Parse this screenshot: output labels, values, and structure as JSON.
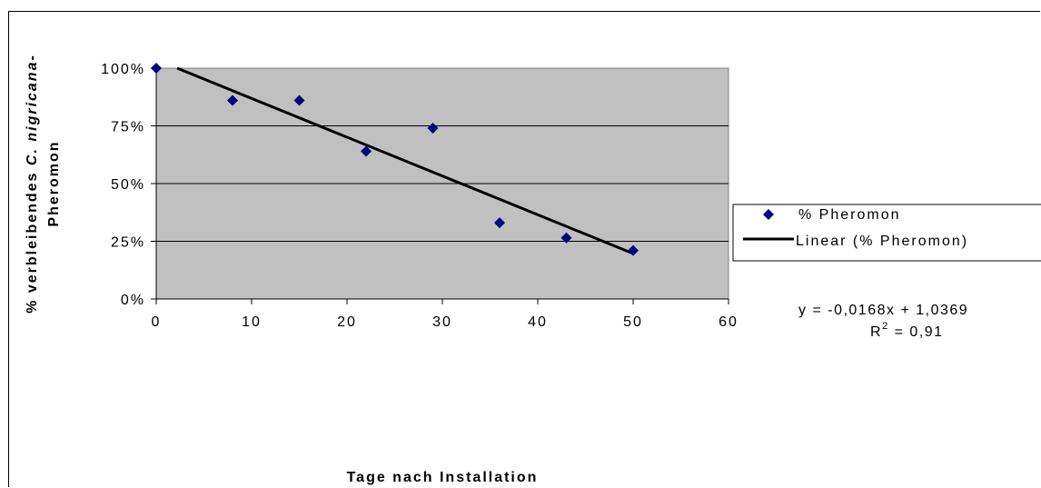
{
  "chart_data": {
    "type": "scatter",
    "xlabel": "Tage nach Installation",
    "ylabel_parts": {
      "prefix": "% verbleibendes ",
      "species": "C. nigricana",
      "suffix": "-",
      "line2": "Pheromon"
    },
    "xlim": [
      0,
      60
    ],
    "ylim": [
      0,
      1
    ],
    "x_ticks": [
      0,
      10,
      20,
      30,
      40,
      50,
      60
    ],
    "x_tick_labels": [
      "0",
      "10",
      "20",
      "30",
      "40",
      "50",
      "60"
    ],
    "y_ticks": [
      0,
      0.25,
      0.5,
      0.75,
      1.0
    ],
    "y_tick_labels": [
      "0%",
      "25%",
      "50%",
      "75%",
      "100%"
    ],
    "grid": "horizontal",
    "plot_background": "#c0c0c0",
    "series": [
      {
        "name": "% Pheromon",
        "kind": "markers",
        "marker": "diamond",
        "color": "#000080",
        "x": [
          0,
          8,
          15,
          22,
          29,
          36,
          43,
          50
        ],
        "y": [
          1.0,
          0.86,
          0.86,
          0.64,
          0.74,
          0.33,
          0.265,
          0.21
        ]
      },
      {
        "name": "Linear (% Pheromon)",
        "kind": "trendline",
        "color": "#000000",
        "slope": -0.0168,
        "intercept": 1.0369,
        "x_range": [
          0,
          50
        ]
      }
    ],
    "annotations": {
      "equation": "y = -0,0168x + 1,0369",
      "r2_prefix": "R",
      "r2_sup": "2",
      "r2_suffix": " = 0,91"
    },
    "legend_position": "right"
  }
}
